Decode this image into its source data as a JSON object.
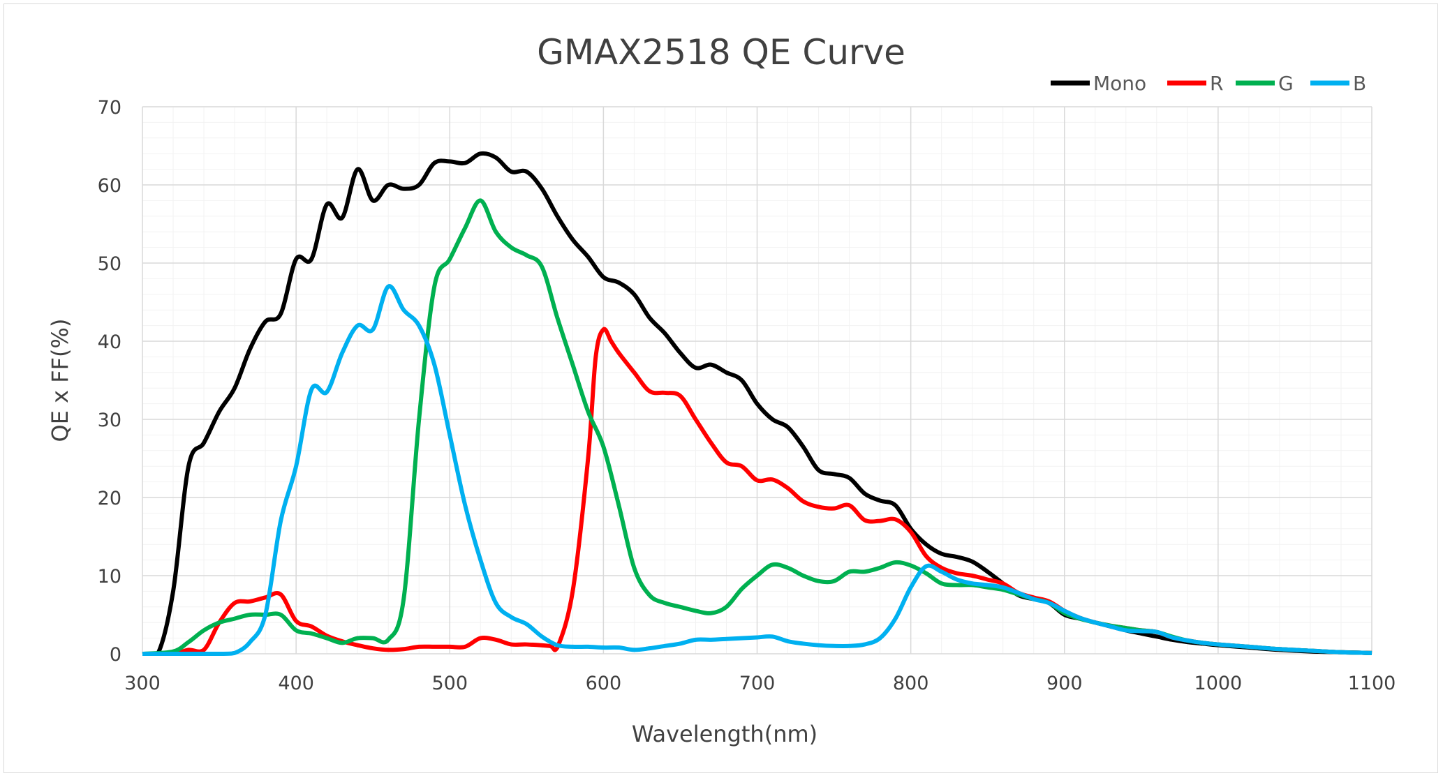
{
  "chart_data": {
    "type": "line",
    "title": "GMAX2518 QE  Curve",
    "xlabel": "Wavelength(nm)",
    "ylabel": "QE x FF(%)",
    "xlim": [
      300,
      1100
    ],
    "ylim": [
      0,
      70
    ],
    "xticks": [
      300,
      400,
      500,
      600,
      700,
      800,
      900,
      1000,
      1100
    ],
    "yticks": [
      0,
      10,
      20,
      30,
      40,
      50,
      60,
      70
    ],
    "grid": true,
    "legend_position": "top-right",
    "series": [
      {
        "name": "Mono",
        "color": "#000000",
        "points": [
          [
            300,
            0
          ],
          [
            310,
            0
          ],
          [
            320,
            8
          ],
          [
            330,
            24
          ],
          [
            340,
            27
          ],
          [
            350,
            31
          ],
          [
            360,
            34
          ],
          [
            370,
            39
          ],
          [
            380,
            42.5
          ],
          [
            390,
            43.5
          ],
          [
            400,
            50.5
          ],
          [
            410,
            50.5
          ],
          [
            420,
            57.5
          ],
          [
            430,
            55.8
          ],
          [
            440,
            62
          ],
          [
            450,
            58
          ],
          [
            460,
            60
          ],
          [
            470,
            59.5
          ],
          [
            480,
            60
          ],
          [
            490,
            62.8
          ],
          [
            500,
            63
          ],
          [
            510,
            62.8
          ],
          [
            520,
            64
          ],
          [
            530,
            63.5
          ],
          [
            540,
            61.7
          ],
          [
            550,
            61.7
          ],
          [
            560,
            59.5
          ],
          [
            570,
            56
          ],
          [
            580,
            53
          ],
          [
            590,
            50.8
          ],
          [
            600,
            48.2
          ],
          [
            610,
            47.5
          ],
          [
            620,
            46
          ],
          [
            630,
            43
          ],
          [
            640,
            41
          ],
          [
            650,
            38.5
          ],
          [
            660,
            36.6
          ],
          [
            670,
            37
          ],
          [
            680,
            36
          ],
          [
            690,
            35
          ],
          [
            700,
            32
          ],
          [
            710,
            30
          ],
          [
            720,
            29
          ],
          [
            730,
            26.5
          ],
          [
            740,
            23.5
          ],
          [
            750,
            23
          ],
          [
            760,
            22.5
          ],
          [
            770,
            20.5
          ],
          [
            780,
            19.6
          ],
          [
            790,
            19
          ],
          [
            800,
            16
          ],
          [
            810,
            14
          ],
          [
            820,
            12.8
          ],
          [
            830,
            12.4
          ],
          [
            840,
            11.8
          ],
          [
            850,
            10.5
          ],
          [
            860,
            9
          ],
          [
            870,
            7.5
          ],
          [
            880,
            7
          ],
          [
            890,
            6.5
          ],
          [
            900,
            5
          ],
          [
            910,
            4.5
          ],
          [
            920,
            4
          ],
          [
            930,
            3.5
          ],
          [
            940,
            3
          ],
          [
            950,
            2.6
          ],
          [
            960,
            2.2
          ],
          [
            970,
            1.8
          ],
          [
            980,
            1.5
          ],
          [
            990,
            1.3
          ],
          [
            1000,
            1.1
          ],
          [
            1020,
            0.8
          ],
          [
            1040,
            0.5
          ],
          [
            1060,
            0.3
          ],
          [
            1080,
            0.2
          ],
          [
            1100,
            0.1
          ]
        ]
      },
      {
        "name": "R",
        "color": "#ff0000",
        "points": [
          [
            300,
            0
          ],
          [
            320,
            0
          ],
          [
            330,
            0.5
          ],
          [
            340,
            0.5
          ],
          [
            350,
            4
          ],
          [
            360,
            6.5
          ],
          [
            370,
            6.7
          ],
          [
            380,
            7.2
          ],
          [
            390,
            7.6
          ],
          [
            400,
            4.2
          ],
          [
            410,
            3.5
          ],
          [
            420,
            2.3
          ],
          [
            430,
            1.6
          ],
          [
            440,
            1.1
          ],
          [
            450,
            0.7
          ],
          [
            460,
            0.5
          ],
          [
            470,
            0.6
          ],
          [
            480,
            0.9
          ],
          [
            490,
            0.9
          ],
          [
            500,
            0.9
          ],
          [
            510,
            0.9
          ],
          [
            520,
            2
          ],
          [
            530,
            1.8
          ],
          [
            540,
            1.2
          ],
          [
            550,
            1.2
          ],
          [
            565,
            1
          ],
          [
            570,
            0.8
          ],
          [
            580,
            8
          ],
          [
            590,
            25
          ],
          [
            595,
            38
          ],
          [
            600,
            41.5
          ],
          [
            605,
            40
          ],
          [
            610,
            38.5
          ],
          [
            620,
            36
          ],
          [
            630,
            33.6
          ],
          [
            640,
            33.4
          ],
          [
            650,
            33
          ],
          [
            660,
            30
          ],
          [
            670,
            27
          ],
          [
            680,
            24.5
          ],
          [
            690,
            24
          ],
          [
            700,
            22.2
          ],
          [
            710,
            22.3
          ],
          [
            720,
            21.2
          ],
          [
            730,
            19.5
          ],
          [
            740,
            18.8
          ],
          [
            750,
            18.6
          ],
          [
            760,
            19
          ],
          [
            770,
            17.1
          ],
          [
            780,
            17
          ],
          [
            790,
            17.2
          ],
          [
            800,
            15.6
          ],
          [
            810,
            12.5
          ],
          [
            820,
            11
          ],
          [
            830,
            10.3
          ],
          [
            840,
            10
          ],
          [
            850,
            9.5
          ],
          [
            860,
            9
          ],
          [
            870,
            7.8
          ],
          [
            880,
            7.2
          ],
          [
            890,
            6.7
          ],
          [
            900,
            5.5
          ],
          [
            910,
            4.6
          ],
          [
            920,
            4
          ],
          [
            930,
            3.6
          ],
          [
            940,
            3.3
          ],
          [
            950,
            3
          ],
          [
            960,
            2.8
          ],
          [
            970,
            2.1
          ],
          [
            980,
            1.7
          ],
          [
            990,
            1.4
          ],
          [
            1000,
            1.2
          ],
          [
            1020,
            0.9
          ],
          [
            1040,
            0.6
          ],
          [
            1060,
            0.4
          ],
          [
            1080,
            0.2
          ],
          [
            1100,
            0.1
          ]
        ]
      },
      {
        "name": "G",
        "color": "#00b050",
        "points": [
          [
            300,
            0
          ],
          [
            320,
            0.3
          ],
          [
            330,
            1.5
          ],
          [
            340,
            3
          ],
          [
            350,
            4
          ],
          [
            360,
            4.5
          ],
          [
            370,
            5
          ],
          [
            380,
            5
          ],
          [
            390,
            5
          ],
          [
            400,
            3
          ],
          [
            410,
            2.6
          ],
          [
            420,
            2
          ],
          [
            430,
            1.4
          ],
          [
            440,
            2
          ],
          [
            450,
            2
          ],
          [
            460,
            1.8
          ],
          [
            470,
            7
          ],
          [
            480,
            30
          ],
          [
            490,
            47
          ],
          [
            500,
            50.5
          ],
          [
            510,
            54.5
          ],
          [
            520,
            58
          ],
          [
            530,
            54
          ],
          [
            540,
            52
          ],
          [
            550,
            51
          ],
          [
            560,
            49.5
          ],
          [
            570,
            43
          ],
          [
            580,
            37
          ],
          [
            590,
            31
          ],
          [
            600,
            26.5
          ],
          [
            610,
            19
          ],
          [
            620,
            11
          ],
          [
            630,
            7.5
          ],
          [
            640,
            6.5
          ],
          [
            650,
            6
          ],
          [
            660,
            5.5
          ],
          [
            670,
            5.2
          ],
          [
            680,
            6
          ],
          [
            690,
            8.3
          ],
          [
            700,
            10
          ],
          [
            710,
            11.4
          ],
          [
            720,
            11
          ],
          [
            730,
            10
          ],
          [
            740,
            9.3
          ],
          [
            750,
            9.3
          ],
          [
            760,
            10.5
          ],
          [
            770,
            10.5
          ],
          [
            780,
            11
          ],
          [
            790,
            11.7
          ],
          [
            800,
            11.3
          ],
          [
            810,
            10.3
          ],
          [
            820,
            9
          ],
          [
            830,
            8.8
          ],
          [
            840,
            8.8
          ],
          [
            850,
            8.5
          ],
          [
            860,
            8.2
          ],
          [
            870,
            7.6
          ],
          [
            880,
            7
          ],
          [
            890,
            6.5
          ],
          [
            900,
            5.2
          ],
          [
            910,
            4.5
          ],
          [
            920,
            4
          ],
          [
            930,
            3.6
          ],
          [
            940,
            3.3
          ],
          [
            950,
            3
          ],
          [
            960,
            2.8
          ],
          [
            970,
            2.2
          ],
          [
            980,
            1.7
          ],
          [
            990,
            1.4
          ],
          [
            1000,
            1.2
          ],
          [
            1020,
            0.9
          ],
          [
            1040,
            0.6
          ],
          [
            1060,
            0.4
          ],
          [
            1080,
            0.2
          ],
          [
            1100,
            0.1
          ]
        ]
      },
      {
        "name": "B",
        "color": "#00b0f0",
        "points": [
          [
            300,
            0
          ],
          [
            350,
            0
          ],
          [
            360,
            0.1
          ],
          [
            370,
            1.5
          ],
          [
            380,
            5
          ],
          [
            390,
            17
          ],
          [
            400,
            24
          ],
          [
            410,
            33.8
          ],
          [
            420,
            33.5
          ],
          [
            430,
            38.5
          ],
          [
            440,
            42
          ],
          [
            450,
            41.5
          ],
          [
            460,
            47
          ],
          [
            470,
            44
          ],
          [
            480,
            42
          ],
          [
            490,
            37
          ],
          [
            500,
            28
          ],
          [
            510,
            19
          ],
          [
            520,
            12
          ],
          [
            530,
            6.5
          ],
          [
            540,
            4.7
          ],
          [
            550,
            3.8
          ],
          [
            560,
            2.2
          ],
          [
            570,
            1.1
          ],
          [
            580,
            0.9
          ],
          [
            590,
            0.9
          ],
          [
            600,
            0.8
          ],
          [
            610,
            0.8
          ],
          [
            620,
            0.5
          ],
          [
            630,
            0.7
          ],
          [
            640,
            1
          ],
          [
            650,
            1.3
          ],
          [
            660,
            1.8
          ],
          [
            670,
            1.8
          ],
          [
            680,
            1.9
          ],
          [
            690,
            2
          ],
          [
            700,
            2.1
          ],
          [
            710,
            2.2
          ],
          [
            720,
            1.6
          ],
          [
            730,
            1.3
          ],
          [
            740,
            1.1
          ],
          [
            750,
            1
          ],
          [
            760,
            1
          ],
          [
            770,
            1.2
          ],
          [
            780,
            2
          ],
          [
            790,
            4.5
          ],
          [
            800,
            8.5
          ],
          [
            810,
            11.2
          ],
          [
            820,
            10.5
          ],
          [
            830,
            9.5
          ],
          [
            840,
            9
          ],
          [
            850,
            8.8
          ],
          [
            860,
            8.5
          ],
          [
            870,
            7.8
          ],
          [
            880,
            7
          ],
          [
            890,
            6.5
          ],
          [
            900,
            5.5
          ],
          [
            910,
            4.6
          ],
          [
            920,
            4
          ],
          [
            930,
            3.5
          ],
          [
            940,
            3
          ],
          [
            950,
            2.9
          ],
          [
            960,
            2.8
          ],
          [
            970,
            2.1
          ],
          [
            980,
            1.7
          ],
          [
            990,
            1.4
          ],
          [
            1000,
            1.2
          ],
          [
            1020,
            0.9
          ],
          [
            1040,
            0.6
          ],
          [
            1060,
            0.4
          ],
          [
            1080,
            0.2
          ],
          [
            1100,
            0.1
          ]
        ]
      }
    ]
  }
}
